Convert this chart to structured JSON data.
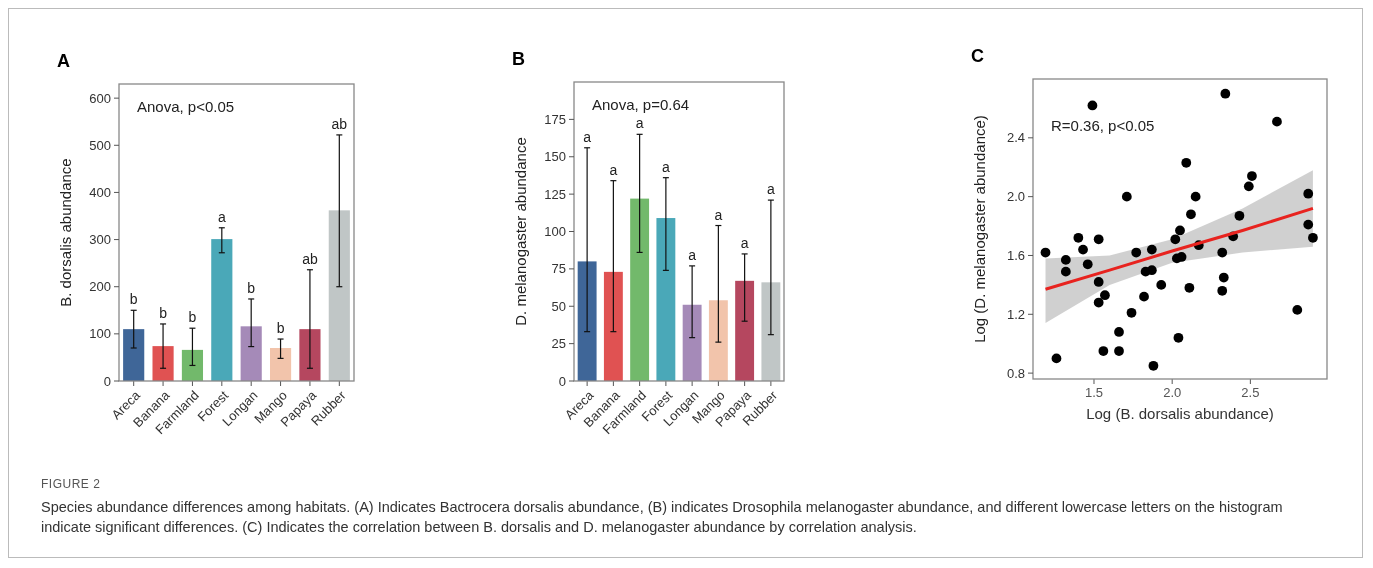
{
  "chart_data": [
    {
      "type": "bar",
      "title": "A",
      "ylabel": "B. dorsalis abundance",
      "categories": [
        "Areca",
        "Banana",
        "Farmland",
        "Forest",
        "Longan",
        "Mango",
        "Papaya",
        "Rubber"
      ],
      "values": [
        110,
        74,
        66,
        301,
        116,
        70,
        110,
        362
      ],
      "colors": [
        "#3f6698",
        "#e05252",
        "#72b96b",
        "#4aa8b8",
        "#a58ab8",
        "#f2c4ab",
        "#b5475f",
        "#c0c6c6"
      ],
      "errors": [
        [
          70,
          150
        ],
        [
          27,
          121
        ],
        [
          33,
          112
        ],
        [
          272,
          325
        ],
        [
          73,
          174
        ],
        [
          48,
          89
        ],
        [
          27,
          236
        ],
        [
          200,
          522
        ]
      ],
      "ylim": [
        0,
        630
      ],
      "yticks": [
        0,
        100,
        200,
        300,
        400,
        500,
        600
      ],
      "grid": false,
      "annotations": [
        "Anova, p<0.05",
        {
          "text": "b",
          "x": "Areca",
          "y": 150
        },
        {
          "text": "b",
          "x": "Banana",
          "y": 121
        },
        {
          "text": "b",
          "x": "Farmland",
          "y": 112
        },
        {
          "text": "a",
          "x": "Forest",
          "y": 325
        },
        {
          "text": "b",
          "x": "Longan",
          "y": 174
        },
        {
          "text": "b",
          "x": "Mango",
          "y": 89
        },
        {
          "text": "ab",
          "x": "Papaya",
          "y": 236
        },
        {
          "text": "ab",
          "x": "Rubber",
          "y": 522
        },
        "FIGURE 2",
        "Species abundance differences among habitats. (A) Indicates Bactrocera dorsalis abundance, (B) indicates Drosophila melanogaster abundance, and different lowercase letters on the histogram indicate significant differences. (C) Indicates the correlation between B. dorsalis and D. melanogaster abundance by correlation analysis."
      ]
    },
    {
      "type": "bar",
      "title": "B",
      "ylabel": "D. melanogaster abundance",
      "categories": [
        "Areca",
        "Banana",
        "Farmland",
        "Forest",
        "Longan",
        "Mango",
        "Papaya",
        "Rubber"
      ],
      "values": [
        80,
        73,
        122,
        109,
        51,
        54,
        67,
        66
      ],
      "colors": [
        "#3f6698",
        "#e05252",
        "#72b96b",
        "#4aa8b8",
        "#a58ab8",
        "#f2c4ab",
        "#b5475f",
        "#c0c6c6"
      ],
      "errors": [
        [
          33,
          156
        ],
        [
          33,
          134
        ],
        [
          86,
          165
        ],
        [
          74,
          136
        ],
        [
          29,
          77
        ],
        [
          26,
          104
        ],
        [
          40,
          85
        ],
        [
          31,
          121
        ]
      ],
      "ylim": [
        0,
        200
      ],
      "yticks": [
        0,
        25,
        50,
        75,
        100,
        125,
        150,
        175
      ],
      "grid": false,
      "annotations": [
        "Anova, p=0.64",
        {
          "text": "a",
          "x": "Areca",
          "y": 156
        },
        {
          "text": "a",
          "x": "Banana",
          "y": 134
        },
        {
          "text": "a",
          "x": "Farmland",
          "y": 165
        },
        {
          "text": "a",
          "x": "Forest",
          "y": 136
        },
        {
          "text": "a",
          "x": "Longan",
          "y": 77
        },
        {
          "text": "a",
          "x": "Mango",
          "y": 104
        },
        {
          "text": "a",
          "x": "Papaya",
          "y": 85
        },
        {
          "text": "a",
          "x": "Rubber",
          "y": 121
        }
      ]
    },
    {
      "type": "scatter",
      "title": "C",
      "xlabel": "Log (B. dorsalis abundance)",
      "ylabel": "Log (D. melanogaster abundance)",
      "xlim": [
        1.11,
        2.99
      ],
      "ylim": [
        0.76,
        2.8
      ],
      "xticks": [
        1.5,
        {
          "value": 2,
          "label": "2.0"
        },
        2.5
      ],
      "yticks": [
        0.8,
        1.2,
        1.6,
        {
          "value": 2,
          "label": "2.0"
        },
        2.4
      ],
      "grid": false,
      "series": [
        {
          "type": "scatter",
          "marker": "circle",
          "color": "#000000",
          "x": [
            1.19,
            1.26,
            1.32,
            1.32,
            1.4,
            1.43,
            1.46,
            1.49,
            1.53,
            1.53,
            1.53,
            1.57,
            1.56,
            1.66,
            1.66,
            1.71,
            1.74,
            1.77,
            1.82,
            1.83,
            1.87,
            1.87,
            1.88,
            1.93,
            2.02,
            2.03,
            2.05,
            2.06,
            2.04,
            2.09,
            2.11,
            2.12,
            2.15,
            2.17,
            2.32,
            2.33,
            2.32,
            2.34,
            2.39,
            2.43,
            2.49,
            2.51,
            2.67,
            2.8,
            2.87,
            2.87,
            2.9
          ],
          "values": [
            1.62,
            0.9,
            1.57,
            1.49,
            1.72,
            1.64,
            1.54,
            2.62,
            1.71,
            1.42,
            1.28,
            1.33,
            0.95,
            1.08,
            0.95,
            2.0,
            1.21,
            1.62,
            1.32,
            1.49,
            1.5,
            1.64,
            0.85,
            1.4,
            1.71,
            1.58,
            1.77,
            1.59,
            1.04,
            2.23,
            1.38,
            1.88,
            2.0,
            1.67,
            1.62,
            1.45,
            1.36,
            2.7,
            1.73,
            1.87,
            2.07,
            2.14,
            2.51,
            1.23,
            2.02,
            1.81,
            1.72
          ]
        },
        {
          "type": "line",
          "color": "#e8231f",
          "line_style": "solid",
          "x": [
            1.19,
            1.6,
            2.0,
            2.45,
            2.9
          ],
          "values": [
            1.37,
            1.5,
            1.63,
            1.77,
            1.92
          ],
          "lower": [
            1.14,
            1.4,
            1.55,
            1.62,
            1.66
          ],
          "upper": [
            1.58,
            1.6,
            1.71,
            1.92,
            2.18
          ]
        }
      ],
      "annotations": [
        "R=0.36, p<0.05"
      ]
    }
  ]
}
